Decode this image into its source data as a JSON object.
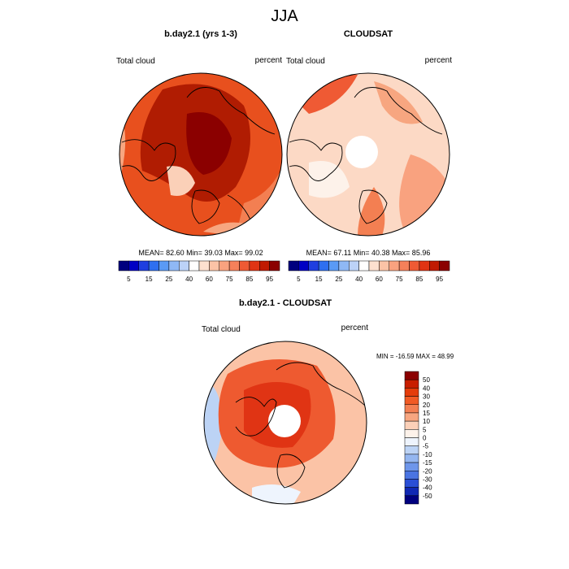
{
  "title": "JJA",
  "panels": [
    {
      "title": "b.day2.1 (yrs 1-3)",
      "left_label": "Total cloud",
      "right_label": "percent",
      "stats": "MEAN=  82.60  Min=  39.03  Max=  99.02"
    },
    {
      "title": "CLOUDSAT",
      "left_label": "Total cloud",
      "right_label": "percent",
      "stats": "MEAN=  67.11  Min=  40.38  Max=  85.96"
    }
  ],
  "top_colorbar": {
    "labels": [
      5,
      15,
      25,
      40,
      60,
      75,
      85,
      95
    ],
    "colors": [
      "#00007f",
      "#0000c4",
      "#1f3fe0",
      "#2e6ff0",
      "#5a9af5",
      "#8fb8f5",
      "#bcd2f7",
      "#ffffff",
      "#fde0cf",
      "#fbc3a6",
      "#f9a27f",
      "#f5805a",
      "#ef5a34",
      "#e03414",
      "#c01a02",
      "#8b0000"
    ]
  },
  "difference": {
    "title": "b.day2.1 - CLOUDSAT",
    "left_label": "Total cloud",
    "right_label": "percent",
    "stats": "MIN = -16.59 MAX =  48.99",
    "colorbar": {
      "labels": [
        50,
        40,
        30,
        20,
        15,
        10,
        5,
        0,
        -5,
        -10,
        -15,
        -20,
        -30,
        -40,
        -50
      ],
      "colors": [
        "#8b0000",
        "#c81e00",
        "#e53c0a",
        "#f15a24",
        "#f37f52",
        "#f7a680",
        "#fbd0b8",
        "#fdf2ea",
        "#eef4fd",
        "#bcd3f5",
        "#94b6f0",
        "#6e96ea",
        "#4a74e2",
        "#2a4fd6",
        "#1028b4",
        "#00007f"
      ]
    }
  }
}
